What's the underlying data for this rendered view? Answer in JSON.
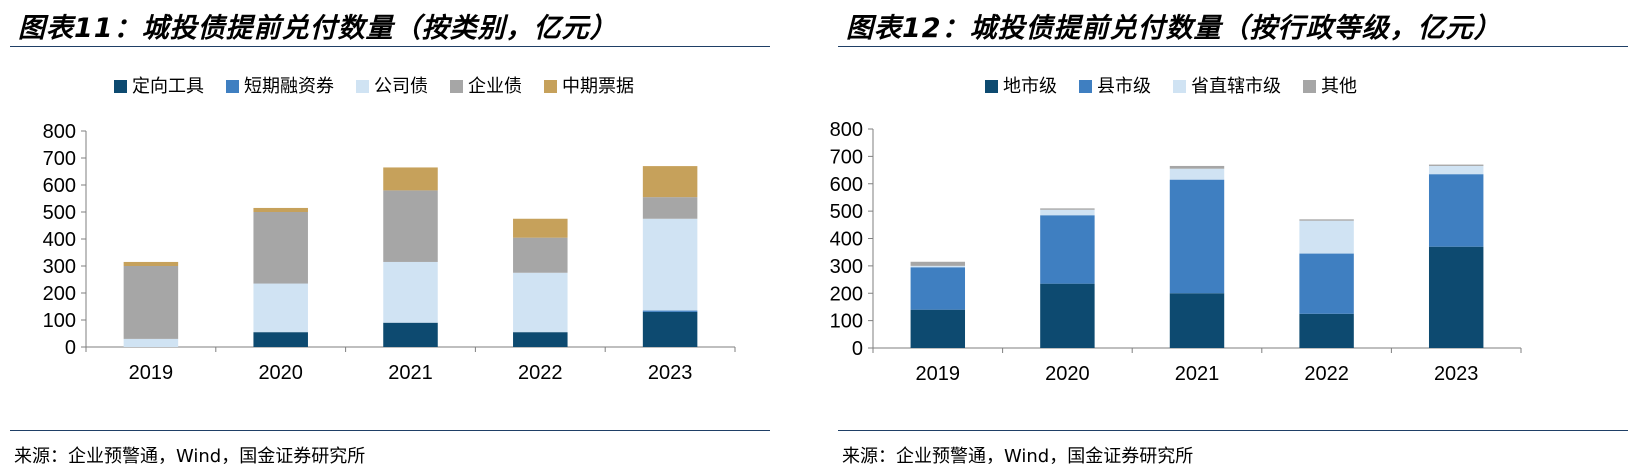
{
  "panels": [
    {
      "title": "图表11：城投债提前兑付数量（按类别，亿元）",
      "source": "来源：企业预警通，Wind，国金证券研究所"
    },
    {
      "title": "图表12：城投债提前兑付数量（按行政等级，亿元）",
      "source": "来源：企业预警通，Wind，国金证券研究所"
    }
  ],
  "chart_data": [
    {
      "type": "bar",
      "stacked": true,
      "categories": [
        "2019",
        "2020",
        "2021",
        "2022",
        "2023"
      ],
      "ylim": [
        0,
        800
      ],
      "yticks": [
        0,
        100,
        200,
        300,
        400,
        500,
        600,
        700,
        800
      ],
      "legend_position": "top",
      "grid": false,
      "series": [
        {
          "name": "定向工具",
          "color": "#0d4a70",
          "values": [
            0,
            55,
            90,
            55,
            130
          ]
        },
        {
          "name": "短期融资券",
          "color": "#3f7fc1",
          "values": [
            0,
            0,
            0,
            0,
            5
          ]
        },
        {
          "name": "公司债",
          "color": "#d0e3f3",
          "values": [
            30,
            180,
            225,
            220,
            340
          ]
        },
        {
          "name": "企业债",
          "color": "#a6a6a6",
          "values": [
            270,
            265,
            265,
            130,
            80
          ]
        },
        {
          "name": "中期票据",
          "color": "#c6a15b",
          "values": [
            15,
            15,
            85,
            70,
            115
          ]
        }
      ]
    },
    {
      "type": "bar",
      "stacked": true,
      "categories": [
        "2019",
        "2020",
        "2021",
        "2022",
        "2023"
      ],
      "ylim": [
        0,
        800
      ],
      "yticks": [
        0,
        100,
        200,
        300,
        400,
        500,
        600,
        700,
        800
      ],
      "legend_position": "top",
      "grid": false,
      "series": [
        {
          "name": "地市级",
          "color": "#0d4a70",
          "values": [
            140,
            235,
            200,
            125,
            370
          ]
        },
        {
          "name": "县市级",
          "color": "#3f7fc1",
          "values": [
            155,
            250,
            415,
            220,
            265
          ]
        },
        {
          "name": "省直辖市级",
          "color": "#d0e3f3",
          "values": [
            5,
            20,
            40,
            120,
            30
          ]
        },
        {
          "name": "其他",
          "color": "#a6a6a6",
          "values": [
            15,
            5,
            10,
            5,
            5
          ]
        }
      ]
    }
  ]
}
